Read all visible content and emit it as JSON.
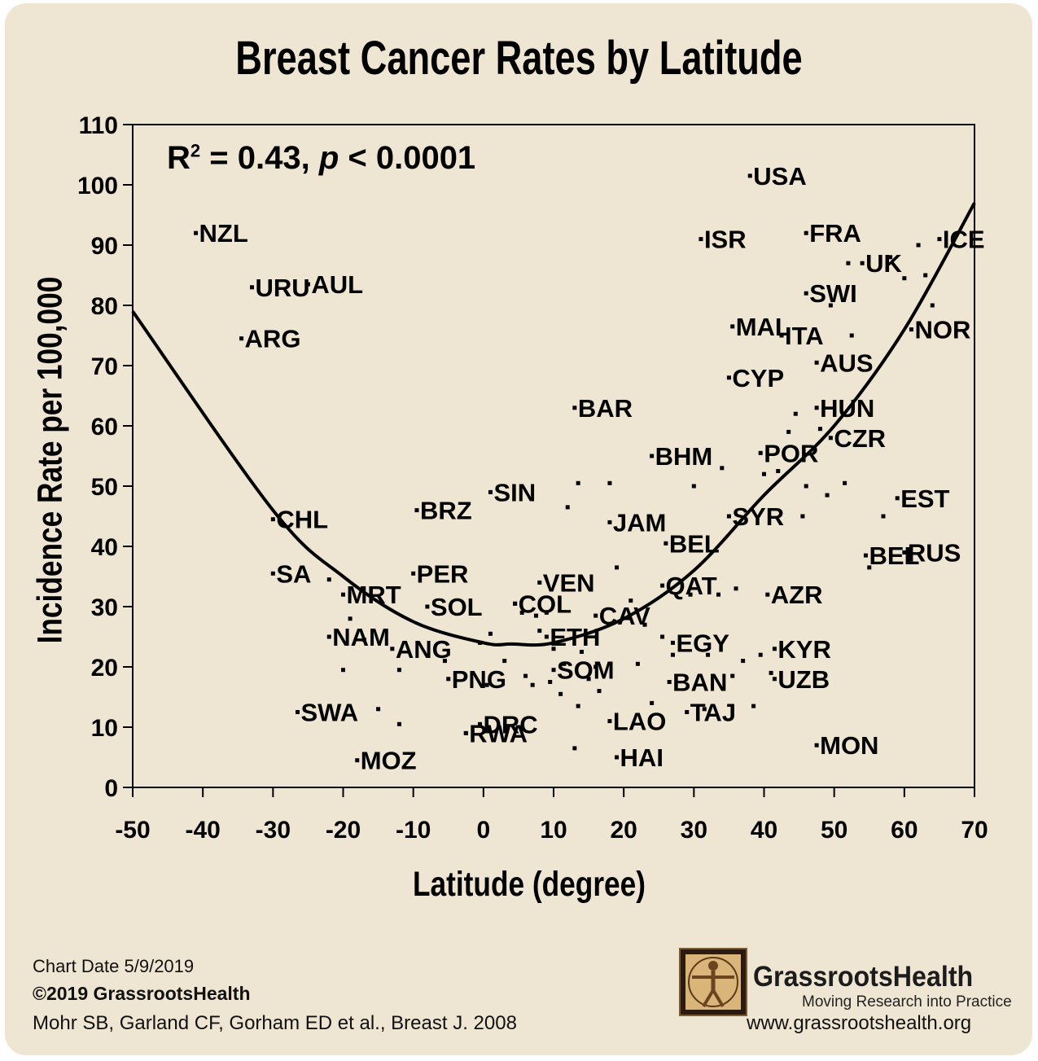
{
  "title": "Breast Cancer Rates by Latitude",
  "stats": {
    "r_label": "R",
    "r_sup": "2",
    "r_value": " = 0.43, ",
    "p_label": "p",
    "p_value": " < 0.0001"
  },
  "footer": {
    "chart_date": "Chart Date 5/9/2019",
    "copyright": "©2019 GrassrootsHealth",
    "citation": "Mohr SB, Garland CF, Gorham ED et al., Breast J. 2008",
    "brand": "GrassrootsHealth",
    "tagline": "Moving Research into Practice",
    "website": "www.grassrootshealth.org"
  },
  "chart_data": {
    "type": "scatter",
    "title": "Breast Cancer Rates by Latitude",
    "xlabel": "Latitude (degree)",
    "ylabel": "Incidence Rate per 100,000",
    "xlim": [
      -50,
      70
    ],
    "ylim": [
      0,
      110
    ],
    "xticks": [
      -50,
      -40,
      -30,
      -20,
      -10,
      0,
      10,
      20,
      30,
      40,
      50,
      60,
      70
    ],
    "yticks": [
      0,
      10,
      20,
      30,
      40,
      50,
      60,
      70,
      80,
      90,
      100,
      110
    ],
    "grid": false,
    "colors": {
      "points": "#000000",
      "fit_line": "#000000"
    },
    "labeled_points": [
      {
        "label": "NZL",
        "x": -41,
        "y": 92
      },
      {
        "label": "URU",
        "x": -33,
        "y": 83
      },
      {
        "label": "AUL",
        "x": -25,
        "y": 83.5
      },
      {
        "label": "ARG",
        "x": -34.5,
        "y": 74.5
      },
      {
        "label": "CHL",
        "x": -30,
        "y": 44.5
      },
      {
        "label": "SA",
        "x": -30,
        "y": 35.5
      },
      {
        "label": "MRT",
        "x": -20,
        "y": 32
      },
      {
        "label": "NAM",
        "x": -22,
        "y": 25
      },
      {
        "label": "SWA",
        "x": -26.5,
        "y": 12.5
      },
      {
        "label": "MOZ",
        "x": -18,
        "y": 4.5
      },
      {
        "label": "BRZ",
        "x": -9.5,
        "y": 46
      },
      {
        "label": "PER",
        "x": -10,
        "y": 35.5
      },
      {
        "label": "SOL",
        "x": -8,
        "y": 30
      },
      {
        "label": "ANG",
        "x": -13,
        "y": 23
      },
      {
        "label": "PNG",
        "x": -5,
        "y": 18
      },
      {
        "label": "SIN",
        "x": 1,
        "y": 49
      },
      {
        "label": "DRC",
        "x": -0.5,
        "y": 10.5
      },
      {
        "label": "RWA",
        "x": -2.5,
        "y": 9
      },
      {
        "label": "VEN",
        "x": 8,
        "y": 34
      },
      {
        "label": "COL",
        "x": 4.5,
        "y": 30.5
      },
      {
        "label": "ETH",
        "x": 9,
        "y": 25
      },
      {
        "label": "SOM",
        "x": 10,
        "y": 19.5
      },
      {
        "label": "BAR",
        "x": 13,
        "y": 63
      },
      {
        "label": "JAM",
        "x": 18,
        "y": 44
      },
      {
        "label": "CAV",
        "x": 16,
        "y": 28.5
      },
      {
        "label": "LAO",
        "x": 18,
        "y": 11
      },
      {
        "label": "HAI",
        "x": 19,
        "y": 5
      },
      {
        "label": "BHM",
        "x": 24,
        "y": 55
      },
      {
        "label": "BEL",
        "x": 26,
        "y": 40.5
      },
      {
        "label": "QAT",
        "x": 25.5,
        "y": 33.5
      },
      {
        "label": "EGY",
        "x": 27,
        "y": 24
      },
      {
        "label": "BAN",
        "x": 26.5,
        "y": 17.5
      },
      {
        "label": "TAJ",
        "x": 29,
        "y": 12.5
      },
      {
        "label": "MAL",
        "x": 35.5,
        "y": 76.5
      },
      {
        "label": "ISR",
        "x": 31,
        "y": 91
      },
      {
        "label": "USA",
        "x": 38,
        "y": 101.5
      },
      {
        "label": "CYP",
        "x": 35,
        "y": 68
      },
      {
        "label": "POR",
        "x": 39.5,
        "y": 55.5
      },
      {
        "label": "SYR",
        "x": 35,
        "y": 45
      },
      {
        "label": "AZR",
        "x": 40.5,
        "y": 32
      },
      {
        "label": "KYR",
        "x": 41.5,
        "y": 23
      },
      {
        "label": "UZB",
        "x": 41.5,
        "y": 18
      },
      {
        "label": "FRA",
        "x": 46,
        "y": 92
      },
      {
        "label": "SWI",
        "x": 46,
        "y": 82
      },
      {
        "label": "ITA",
        "x": 42.5,
        "y": 75
      },
      {
        "label": "AUS",
        "x": 47.5,
        "y": 70.5
      },
      {
        "label": "HUN",
        "x": 47.5,
        "y": 63
      },
      {
        "label": "CZR",
        "x": 49.5,
        "y": 58
      },
      {
        "label": "BEL",
        "x": 54.5,
        "y": 38.5
      },
      {
        "label": "MON",
        "x": 47.5,
        "y": 7
      },
      {
        "label": "UK",
        "x": 54,
        "y": 87
      },
      {
        "label": "ICE",
        "x": 65,
        "y": 91
      },
      {
        "label": "NOR",
        "x": 61,
        "y": 76
      },
      {
        "label": "EST",
        "x": 59,
        "y": 48
      },
      {
        "label": "RUS",
        "x": 60,
        "y": 39
      }
    ],
    "unlabeled_points": [
      [
        -22,
        34.5
      ],
      [
        -19,
        28
      ],
      [
        -17,
        24.5
      ],
      [
        -20,
        19.5
      ],
      [
        -15,
        13
      ],
      [
        -12,
        10.5
      ],
      [
        -12,
        19.5
      ],
      [
        -5.5,
        21
      ],
      [
        -0.5,
        24
      ],
      [
        1,
        25.5
      ],
      [
        0.5,
        17
      ],
      [
        -2.5,
        9
      ],
      [
        3,
        21
      ],
      [
        4.5,
        30.5
      ],
      [
        5.5,
        29
      ],
      [
        6,
        18.5
      ],
      [
        7,
        17
      ],
      [
        7.5,
        28.5
      ],
      [
        8,
        26
      ],
      [
        9,
        29
      ],
      [
        10,
        23
      ],
      [
        9.5,
        17.5
      ],
      [
        11,
        15.5
      ],
      [
        11.5,
        20.5
      ],
      [
        12,
        46.5
      ],
      [
        13,
        6.5
      ],
      [
        13.5,
        50.5
      ],
      [
        13.5,
        13.5
      ],
      [
        14,
        22.5
      ],
      [
        15,
        18
      ],
      [
        16,
        20
      ],
      [
        16.5,
        16
      ],
      [
        18,
        50.5
      ],
      [
        19,
        36.5
      ],
      [
        21,
        31
      ],
      [
        22,
        20.5
      ],
      [
        23,
        27
      ],
      [
        24,
        14
      ],
      [
        25.5,
        25
      ],
      [
        27,
        22
      ],
      [
        29.5,
        32
      ],
      [
        30,
        50
      ],
      [
        31.5,
        13
      ],
      [
        32,
        22
      ],
      [
        33.5,
        32
      ],
      [
        34,
        53
      ],
      [
        35.5,
        18.5
      ],
      [
        36,
        33
      ],
      [
        37,
        21
      ],
      [
        38.5,
        13.5
      ],
      [
        39.5,
        22
      ],
      [
        40,
        52
      ],
      [
        41,
        19
      ],
      [
        42,
        52.5
      ],
      [
        43.5,
        59
      ],
      [
        44.5,
        62
      ],
      [
        45.5,
        45
      ],
      [
        46,
        50
      ],
      [
        48,
        59.5
      ],
      [
        49,
        48.5
      ],
      [
        49.5,
        80
      ],
      [
        51.5,
        50.5
      ],
      [
        52,
        87
      ],
      [
        52.5,
        75
      ],
      [
        55,
        36.5
      ],
      [
        57,
        45
      ],
      [
        58,
        88
      ],
      [
        60,
        84.5
      ],
      [
        62,
        90
      ],
      [
        63,
        85
      ],
      [
        64,
        80
      ]
    ],
    "fit_curve": {
      "type": "quadratic",
      "x": [
        -50,
        -30,
        -20,
        -10,
        0,
        4,
        10,
        20,
        30,
        40,
        50,
        60,
        70
      ],
      "y": [
        79,
        46,
        35,
        27.5,
        24,
        23.8,
        24,
        28,
        36,
        48.5,
        60,
        76,
        97
      ]
    }
  }
}
